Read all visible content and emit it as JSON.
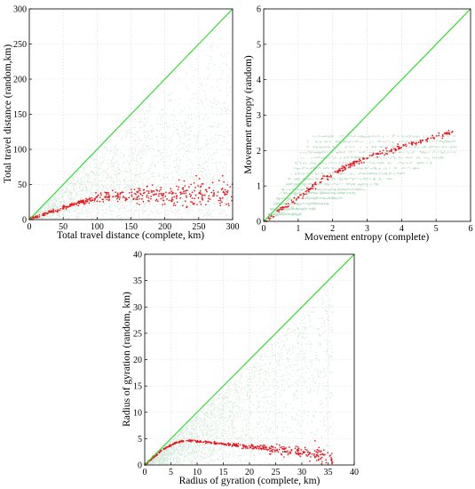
{
  "chart_data": [
    {
      "id": "travel",
      "type": "scatter",
      "xlabel": "Total travel distance (complete, km)",
      "ylabel": "Total travel distance (random,km)",
      "xlim": [
        0,
        300
      ],
      "ylim": [
        0,
        300
      ],
      "xticks": [
        0,
        50,
        100,
        150,
        200,
        250,
        300
      ],
      "yticks": [
        0,
        50,
        100,
        150,
        200,
        250,
        300
      ],
      "grid": true,
      "colors": {
        "scatter": "#d8ebdf",
        "trend": "#e8141b",
        "diagonal": "#22dd22"
      },
      "diagonal": [
        [
          0,
          0
        ],
        [
          300,
          300
        ]
      ],
      "trend": [
        [
          0,
          0
        ],
        [
          10,
          4
        ],
        [
          25,
          9
        ],
        [
          50,
          17
        ],
        [
          75,
          25
        ],
        [
          100,
          31
        ],
        [
          125,
          35
        ],
        [
          150,
          35
        ],
        [
          175,
          35
        ],
        [
          200,
          34
        ],
        [
          225,
          35
        ],
        [
          250,
          36
        ],
        [
          275,
          36
        ],
        [
          300,
          37
        ]
      ]
    },
    {
      "id": "entropy",
      "type": "scatter",
      "xlabel": "Movement entropy (complete)",
      "ylabel": "Movement entropy (random)",
      "xlim": [
        0,
        6
      ],
      "ylim": [
        0,
        6
      ],
      "xticks": [
        0,
        1,
        2,
        3,
        4,
        5,
        6
      ],
      "yticks": [
        0,
        1,
        2,
        3,
        4,
        5,
        6
      ],
      "grid": true,
      "colors": {
        "scatter": "#c4e2ce",
        "trend": "#e8141b",
        "diagonal": "#22dd22"
      },
      "diagonal": [
        [
          0,
          0
        ],
        [
          6,
          6
        ]
      ],
      "trend": [
        [
          0,
          0
        ],
        [
          0.5,
          0.35
        ],
        [
          1.0,
          0.65
        ],
        [
          1.5,
          1.05
        ],
        [
          2.0,
          1.35
        ],
        [
          2.5,
          1.6
        ],
        [
          3.0,
          1.8
        ],
        [
          3.5,
          1.95
        ],
        [
          4.0,
          2.1
        ],
        [
          4.5,
          2.25
        ],
        [
          5.0,
          2.4
        ],
        [
          5.5,
          2.55
        ]
      ]
    },
    {
      "id": "gyration",
      "type": "scatter",
      "xlabel": "Radius of gyration (complete, km)",
      "ylabel": "Radius of gyration (random, km)",
      "xlim": [
        0,
        40
      ],
      "ylim": [
        0,
        40
      ],
      "xticks": [
        0,
        5,
        10,
        15,
        20,
        25,
        30,
        35,
        40
      ],
      "yticks": [
        0,
        5,
        10,
        15,
        20,
        25,
        30,
        35,
        40
      ],
      "grid": true,
      "colors": {
        "scatter": "#d8ebdf",
        "trend": "#e8141b",
        "diagonal": "#22dd22"
      },
      "diagonal": [
        [
          0,
          0
        ],
        [
          40,
          40
        ]
      ],
      "trend": [
        [
          0,
          0
        ],
        [
          1,
          0.9
        ],
        [
          2,
          1.7
        ],
        [
          3,
          2.5
        ],
        [
          4,
          3.2
        ],
        [
          5,
          3.8
        ],
        [
          6,
          4.2
        ],
        [
          7,
          4.5
        ],
        [
          8,
          4.6
        ],
        [
          9,
          4.6
        ],
        [
          10,
          4.5
        ],
        [
          12,
          4.3
        ],
        [
          14,
          4.1
        ],
        [
          16,
          3.9
        ],
        [
          18,
          3.7
        ],
        [
          20,
          3.5
        ],
        [
          22,
          3.3
        ],
        [
          24,
          3.1
        ],
        [
          26,
          2.9
        ],
        [
          28,
          2.6
        ],
        [
          30,
          2.3
        ],
        [
          32,
          2.0
        ],
        [
          34,
          1.6
        ],
        [
          36,
          1.2
        ]
      ]
    }
  ]
}
